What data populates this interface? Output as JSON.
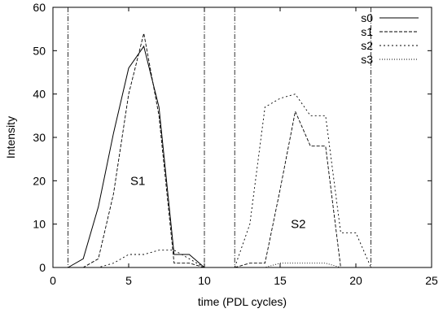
{
  "chart_data": {
    "type": "line",
    "xlabel": "time (PDL cycles)",
    "ylabel": "Intensity",
    "xlim": [
      0,
      25
    ],
    "ylim": [
      0,
      60
    ],
    "xticks": [
      0,
      5,
      10,
      15,
      20,
      25
    ],
    "yticks": [
      0,
      10,
      20,
      30,
      40,
      50,
      60
    ],
    "grid": false,
    "legend_position": "top-right",
    "series": [
      {
        "name": "s0",
        "style": "solid",
        "x": [
          1,
          2,
          3,
          4,
          5,
          6,
          7,
          8,
          9,
          10,
          11,
          12,
          13,
          14,
          15,
          16,
          17,
          18,
          19,
          20,
          21,
          22
        ],
        "y": [
          0,
          2,
          14,
          31,
          46,
          51,
          37,
          3,
          3,
          0,
          0,
          0,
          0,
          0,
          0,
          0,
          0,
          0,
          0,
          0,
          0,
          0
        ]
      },
      {
        "name": "s1",
        "style": "dashed",
        "x": [
          1,
          2,
          3,
          4,
          5,
          6,
          7,
          8,
          9,
          10,
          11,
          12,
          13,
          14,
          15,
          16,
          17,
          18,
          19,
          20,
          21
        ],
        "y": [
          0,
          0,
          2,
          17,
          40,
          54,
          35,
          1,
          1,
          0,
          0,
          0,
          1,
          1,
          18,
          36,
          28,
          28,
          0,
          0,
          0
        ]
      },
      {
        "name": "s2",
        "style": "dotted",
        "x": [
          1,
          2,
          3,
          4,
          5,
          6,
          7,
          8,
          9,
          10,
          11,
          12,
          13,
          14,
          15,
          16,
          17,
          18,
          19,
          20,
          21
        ],
        "y": [
          0,
          0,
          0,
          1,
          3,
          3,
          4,
          4,
          2,
          0,
          0,
          0,
          10,
          37,
          39,
          40,
          35,
          35,
          8,
          8,
          0
        ]
      },
      {
        "name": "s3",
        "style": "fine-dotted",
        "x": [
          1,
          2,
          3,
          4,
          5,
          6,
          7,
          8,
          9,
          10,
          11,
          12,
          13,
          14,
          15,
          16,
          17,
          18,
          19,
          20,
          21
        ],
        "y": [
          0,
          0,
          0,
          0,
          0,
          0,
          0,
          0,
          0,
          0,
          0,
          0,
          0,
          0,
          1,
          1,
          1,
          1,
          0,
          0,
          0
        ]
      }
    ],
    "vertical_lines": [
      1,
      10,
      12,
      21
    ],
    "annotations": [
      {
        "text": "S1",
        "x": 5.6,
        "y": 20
      },
      {
        "text": "S2",
        "x": 16.2,
        "y": 10
      }
    ]
  }
}
